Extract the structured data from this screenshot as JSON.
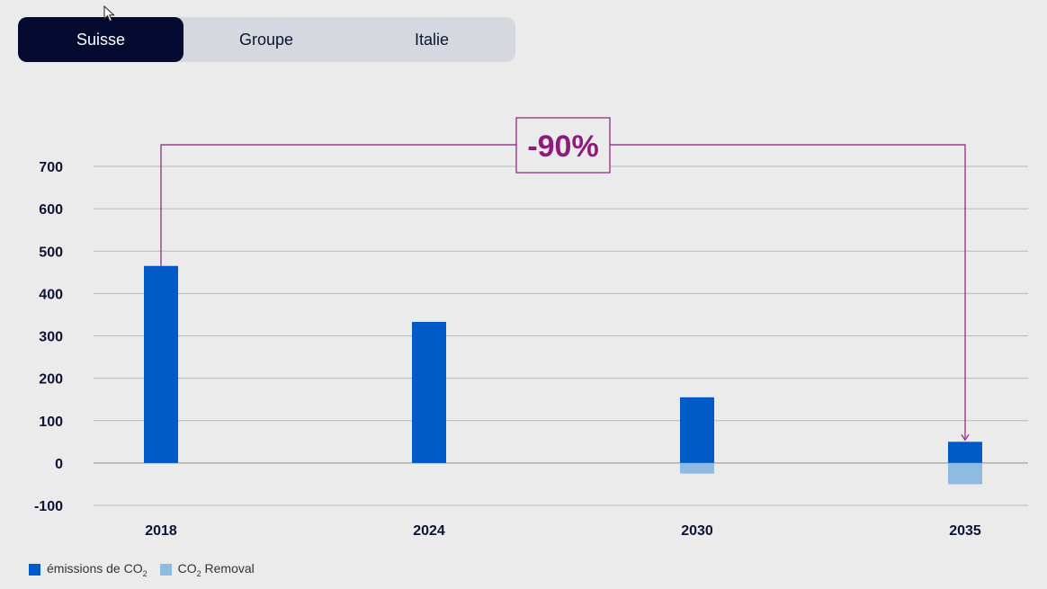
{
  "tabs": [
    {
      "label": "Suisse",
      "active": true
    },
    {
      "label": "Groupe",
      "active": false
    },
    {
      "label": "Italie",
      "active": false
    }
  ],
  "annotation": {
    "label": "-90%",
    "from": "2018",
    "to": "2035"
  },
  "chart_data": {
    "type": "bar",
    "categories": [
      "2018",
      "2024",
      "2030",
      "2035"
    ],
    "series": [
      {
        "name": "émissions de CO₂",
        "color": "#005ac8",
        "values": [
          465,
          333,
          155,
          50
        ]
      },
      {
        "name": "CO₂ Removal",
        "color": "#8fbbe3",
        "values": [
          0,
          0,
          -25,
          -50
        ]
      }
    ],
    "ylim": [
      -100,
      700
    ],
    "yticks": [
      "700",
      "600",
      "500",
      "400",
      "300",
      "200",
      "100",
      "0",
      "-100"
    ],
    "grid": true,
    "legend": "bottom-left",
    "accent_color": "#8c1a7f"
  },
  "legend": {
    "emissions_prefix": "émissions de CO",
    "emissions_sub": "2",
    "removal_prefix": "CO",
    "removal_sub": "2",
    "removal_suffix": " Removal"
  }
}
